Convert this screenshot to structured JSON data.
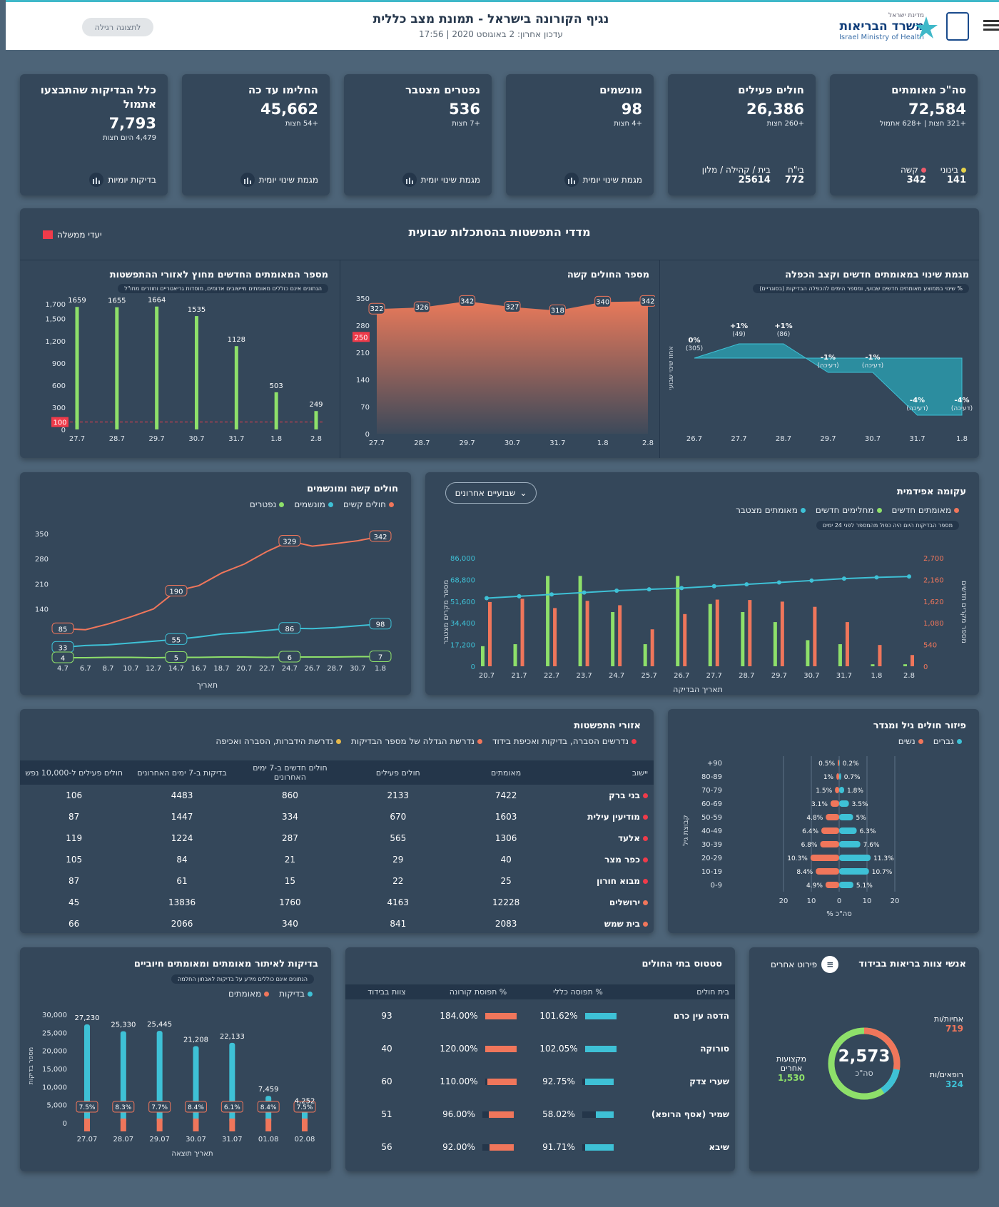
{
  "header": {
    "title": "נגיף הקורונה בישראל - תמונת מצב כללית",
    "updated": "עדכון אחרון: 2 באוגוסט 2020 | 17:56",
    "simple_view": "לתצוגה רגילה",
    "logo_small": "מדינת ישראל",
    "logo_main": "משרד הבריאות",
    "logo_en": "Israel Ministry of Health"
  },
  "kpis": {
    "confirmed": {
      "label": "סה\"כ מאומתים",
      "value": "72,584",
      "sub": "+321 חצות | +628 אתמול"
    },
    "active": {
      "label": "חולים פעילים",
      "value": "26,386",
      "sub": "+260 חצות",
      "h_label": "בי\"ח",
      "h_value": "772",
      "c_label": "בית / קהילה / מלון",
      "c_value": "25614"
    },
    "ventilated": {
      "label": "מונשמים",
      "value": "98",
      "sub": "+4 חצות",
      "foot": "מגמת שינוי יומית"
    },
    "deceased": {
      "label": "נפטרים מצטבר",
      "value": "536",
      "sub": "+7 חצות",
      "foot": "מגמת שינוי יומית"
    },
    "recovered": {
      "label": "החלימו עד כה",
      "value": "45,662",
      "sub": "+54 חצות",
      "foot": "מגמת שינוי יומית"
    },
    "tests": {
      "label": "כלל הבדיקות שהתבצעו אתמול",
      "value": "7,793",
      "sub": "4,479 היום חצות",
      "foot": "בדיקות יומיות"
    }
  },
  "confirmed_split": {
    "mild_label": "בינוני",
    "mild_value": "141",
    "severe_label": "קשה",
    "severe_value": "342",
    "mild_color": "#e6d24a",
    "severe_color": "#ef5b6b"
  },
  "weekly": {
    "title": "מדדי התפשטות בהסתכלות שבועית",
    "gov_targets": "יעדי ממשלה"
  },
  "panel_new_confirmed": {
    "title": "מספר המאומתים החדשים מחוץ לאזורי ההתפשטות",
    "note": "הנתונים אינם כוללים מאומתים מיישובים אדומים, מוסדות גריאטריים וחוזרים מחו\"ל"
  },
  "panel_severe": {
    "title": "מספר החולים קשה"
  },
  "panel_change": {
    "title": "מגמת שינוי במאומתים חדשים וקצב הכפלה",
    "note": "% שינוי בממוצע מאומתים חדשים שבועי, ומספר הימים להכפלה הבדיקות (בסוגריים)",
    "ylabel": "אחוז שינוי שבועי"
  },
  "panel_severe_vent": {
    "title": "חולים קשה ומונשמים",
    "legend": [
      "חולים קשים",
      "מונשמים",
      "נפטרים"
    ],
    "xlabel": "תאריך"
  },
  "panel_epi": {
    "title": "עקומה אפידמית",
    "dropdown": "שבועיים אחרונים",
    "legend": [
      "מאומתים חדשים",
      "מחלימים חדשים",
      "מאומתים מצטבר"
    ],
    "note": "מספר הבדיקות היום היה כפול מהמספר לפני 24 ימים",
    "xlabel": "תאריך הבדיקה",
    "ylabel_left": "מספר מקרים מצטבר",
    "ylabel_right": "מספר מקרים חדשים"
  },
  "panel_areas": {
    "title": "אזורי התפשטות",
    "legend": [
      "נדרשים הסברה, בדיקות ואכיפת בידוד",
      "נדרשת הגדלה של מספר הבדיקות",
      "נדרשת הידברות, הסברה ואכיפה"
    ],
    "columns": [
      "יישוב",
      "מאומתים",
      "חולים פעילים",
      "חולים חדשים ב-7 ימים האחרונים",
      "בדיקות ב-7 ימים האחרונים",
      "חולים פעילים ל-10,000 נפש"
    ],
    "rows": [
      {
        "name": "בני ברק",
        "c": "7422",
        "a": "2133",
        "n": "860",
        "t": "4483",
        "r": "106",
        "color": "#ef3b4a"
      },
      {
        "name": "מודיעין עילית",
        "c": "1603",
        "a": "670",
        "n": "334",
        "t": "1447",
        "r": "87",
        "color": "#ef3b4a"
      },
      {
        "name": "אלעד",
        "c": "1306",
        "a": "565",
        "n": "287",
        "t": "1224",
        "r": "119",
        "color": "#ef3b4a"
      },
      {
        "name": "כפר מצר",
        "c": "40",
        "a": "29",
        "n": "21",
        "t": "84",
        "r": "105",
        "color": "#ef3b4a"
      },
      {
        "name": "מבוא חורון",
        "c": "25",
        "a": "22",
        "n": "15",
        "t": "61",
        "r": "87",
        "color": "#ef3b4a"
      },
      {
        "name": "ירושלים",
        "c": "12228",
        "a": "4163",
        "n": "1760",
        "t": "13836",
        "r": "45",
        "color": "#f0765b"
      },
      {
        "name": "בית שמש",
        "c": "2083",
        "a": "841",
        "n": "340",
        "t": "2066",
        "r": "66",
        "color": "#f0765b"
      }
    ]
  },
  "panel_age": {
    "title": "פיזור חולים גיל ומגדר",
    "legend": [
      "גברים",
      "נשים"
    ],
    "ylabel": "קבוצת גיל",
    "xlabel": "% סה\"כ"
  },
  "panel_tests": {
    "title": "בדיקות לאיתור מאומתים ומאומתים חיוביים",
    "note": "הנתונים אינם כוללים מידע על בדיקות לאבחון החלמה",
    "legend": [
      "בדיקות",
      "מאומתים"
    ],
    "xlabel": "תאריך תוצאה",
    "ylabel": "מספר בדיקות"
  },
  "panel_hosp": {
    "title": "סטטוס בתי החולים",
    "columns": [
      "בית חולים",
      "% תפוסה כללי",
      "% תפוסת קורונה",
      "צוות בבידוד"
    ],
    "rows": [
      {
        "name": "הדסה עין כרם",
        "gen": "101.62%",
        "cov": "184.00%",
        "iso": "93",
        "genv": 101.62,
        "covv": 184
      },
      {
        "name": "סורוקה",
        "gen": "102.05%",
        "cov": "120.00%",
        "iso": "40",
        "genv": 102.05,
        "covv": 120
      },
      {
        "name": "שערי צדק",
        "gen": "92.75%",
        "cov": "110.00%",
        "iso": "60",
        "genv": 92.75,
        "covv": 110
      },
      {
        "name": "שמיר (אסף הרופא)",
        "gen": "58.02%",
        "cov": "96.00%",
        "iso": "51",
        "genv": 58.02,
        "covv": 96
      },
      {
        "name": "שיבא",
        "gen": "91.71%",
        "cov": "92.00%",
        "iso": "56",
        "genv": 91.71,
        "covv": 92
      }
    ]
  },
  "panel_staff": {
    "title": "אנשי צוות בריאות בבידוד",
    "breakdown": "פירוט אחרים",
    "total": "2,573",
    "total_label": "סה\"כ",
    "nurses_label": "אחיות/ות",
    "nurses": "719",
    "doctors_label": "רופאים/ות",
    "doctors": "324",
    "other_label": "מקצועות אחרים",
    "other": "1,530"
  },
  "chart_data": [
    {
      "id": "new_confirmed",
      "type": "bar",
      "categories": [
        "27.7",
        "28.7",
        "29.7",
        "30.7",
        "31.7",
        "1.8",
        "2.8"
      ],
      "values": [
        1659,
        1655,
        1664,
        1535,
        1128,
        503,
        249
      ],
      "ylim": [
        0,
        1700
      ],
      "yticks": [
        0,
        300,
        600,
        900,
        1200,
        1500,
        1700
      ],
      "target": 100
    },
    {
      "id": "severe",
      "type": "area",
      "categories": [
        "27.7",
        "28.7",
        "29.7",
        "30.7",
        "31.7",
        "1.8",
        "2.8"
      ],
      "points": [
        322,
        326,
        342,
        327,
        318,
        340,
        342
      ],
      "ylim": [
        0,
        350
      ],
      "yticks": [
        0,
        70,
        140,
        210,
        280,
        350
      ],
      "target": 250
    },
    {
      "id": "change",
      "type": "area",
      "categories": [
        "26.7",
        "27.7",
        "28.7",
        "29.7",
        "30.7",
        "31.7",
        "1.8"
      ],
      "labels": [
        "0%\n(305)",
        "+1%\n(49)",
        "+1%\n(86)",
        "-1%\n(דעיכה)",
        "-1%\n(דעיכה)",
        "-4%\n(דעיכה)",
        "-4%\n(דעיכה)"
      ],
      "values": [
        0,
        1,
        1,
        -1,
        -1,
        -4,
        -4
      ]
    },
    {
      "id": "severe_vent",
      "type": "line",
      "x": [
        "4.7",
        "6.7",
        "8.7",
        "10.7",
        "12.7",
        "14.7",
        "16.7",
        "18.7",
        "20.7",
        "22.7",
        "24.7",
        "26.7",
        "28.7",
        "30.7",
        "1.8"
      ],
      "series": [
        {
          "name": "חולים קשים",
          "color": "#f0765b",
          "values": [
            85,
            82,
            98,
            118,
            140,
            190,
            205,
            240,
            265,
            300,
            329,
            315,
            322,
            330,
            342
          ]
        },
        {
          "name": "מונשמים",
          "color": "#3ec1d6",
          "values": [
            33,
            38,
            40,
            45,
            50,
            55,
            62,
            70,
            74,
            80,
            86,
            85,
            88,
            93,
            98
          ]
        },
        {
          "name": "נפטרים",
          "color": "#8ee06a",
          "values": [
            4,
            4,
            5,
            5,
            4,
            5,
            5,
            6,
            6,
            5,
            6,
            6,
            6,
            7,
            7
          ]
        }
      ],
      "ylim": [
        0,
        350
      ],
      "yticks": [
        140,
        210,
        280,
        350
      ],
      "labels": {
        "a": [
          "85",
          "190",
          "329",
          "342"
        ],
        "b": [
          "33",
          "55",
          "86",
          "98"
        ],
        "c": [
          "4",
          "5",
          "6",
          "7"
        ]
      }
    },
    {
      "id": "epi",
      "type": "bar",
      "categories": [
        "20.7",
        "21.7",
        "22.7",
        "23.7",
        "24.7",
        "25.7",
        "26.7",
        "27.7",
        "28.7",
        "29.7",
        "30.7",
        "31.7",
        "1.8",
        "2.8"
      ],
      "series": [
        {
          "name": "מחלימים חדשים",
          "color": "#8ee06a",
          "values": [
            500,
            550,
            2250,
            2250,
            1350,
            550,
            2250,
            1550,
            1350,
            1100,
            650,
            550,
            50,
            50
          ]
        },
        {
          "name": "מאומתים חדשים",
          "color": "#f0765b",
          "values": [
            1600,
            1680,
            1450,
            1630,
            1520,
            920,
            1300,
            1660,
            1650,
            1610,
            1480,
            1100,
            530,
            280
          ]
        },
        {
          "name": "מאומתים מצטבר",
          "color": "#3ec1d6",
          "values": [
            54000,
            55500,
            57000,
            58500,
            60000,
            61000,
            62000,
            63500,
            65000,
            66500,
            68000,
            69500,
            70500,
            71200
          ]
        }
      ],
      "ylim_left": [
        0,
        86000
      ],
      "yticks_left": [
        "0",
        "17,200",
        "34,400",
        "51,600",
        "68,800",
        "86,000"
      ],
      "ylim_right": [
        0,
        2700
      ],
      "yticks_right": [
        "0",
        "540",
        "1,080",
        "1,620",
        "2,160",
        "2,700"
      ]
    },
    {
      "id": "age",
      "type": "bar",
      "categories": [
        "0-9",
        "10-19",
        "20-29",
        "30-39",
        "40-49",
        "50-59",
        "60-69",
        "70-79",
        "80-89",
        "+90"
      ],
      "series": [
        {
          "name": "נשים",
          "color": "#f0765b",
          "values": [
            4.9,
            8.4,
            10.3,
            6.8,
            6.4,
            4.8,
            3.1,
            1.5,
            1,
            0.5
          ]
        },
        {
          "name": "גברים",
          "color": "#3ec1d6",
          "values": [
            5.1,
            10.7,
            11.3,
            7.6,
            6.3,
            5,
            3.5,
            1.8,
            0.7,
            0.2
          ]
        }
      ],
      "xticks": [
        "20",
        "10",
        "0",
        "10",
        "20"
      ]
    },
    {
      "id": "tests",
      "type": "bar",
      "categories": [
        "27.07",
        "28.07",
        "29.07",
        "30.07",
        "31.07",
        "01.08",
        "02.08"
      ],
      "values": [
        27230,
        25330,
        25445,
        21208,
        22133,
        7459,
        4252
      ],
      "labels": [
        "27,230",
        "25,330",
        "25,445",
        "21,208",
        "22,133",
        "7,459",
        "4,252"
      ],
      "positive": [
        "7.5%",
        "8.3%",
        "7.7%",
        "8.4%",
        "6.1%",
        "8.4%",
        "7.5%"
      ],
      "ylim": [
        0,
        30000
      ],
      "yticks": [
        "0",
        "5,000",
        "10,000",
        "15,000",
        "20,000",
        "25,000",
        "30,000"
      ]
    }
  ]
}
